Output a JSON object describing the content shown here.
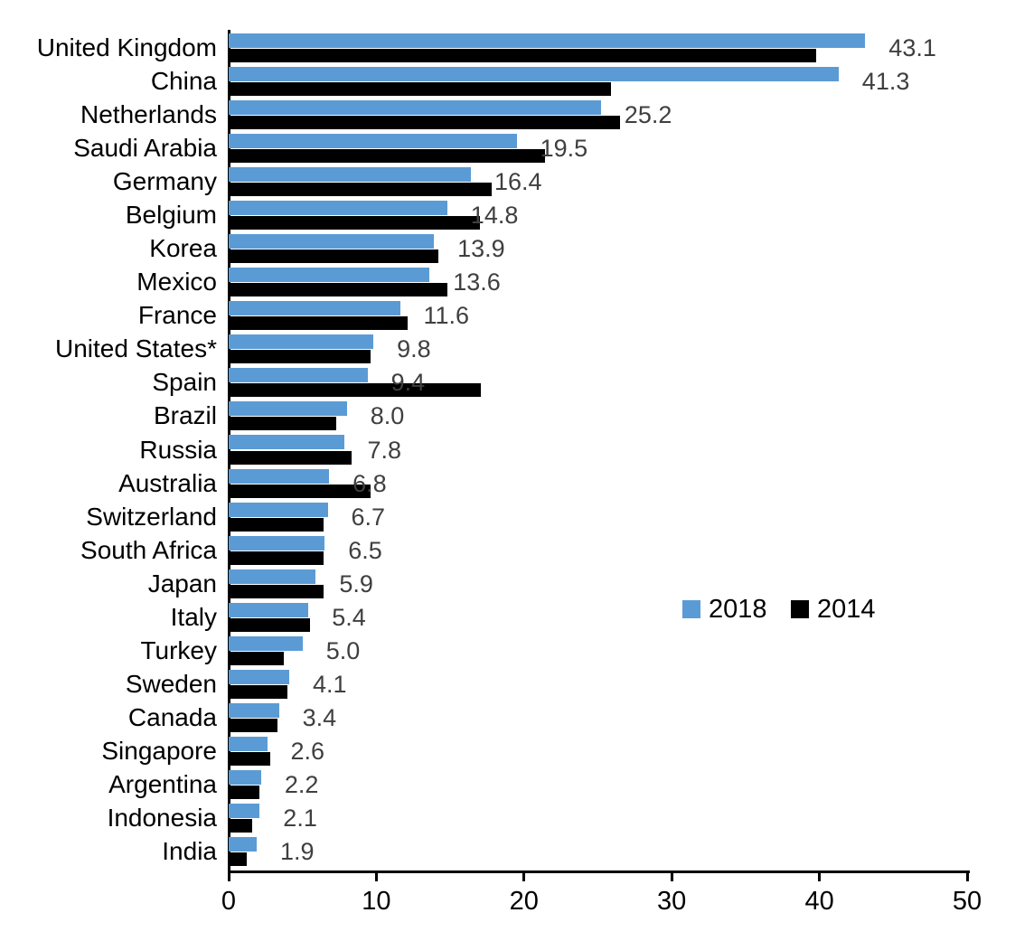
{
  "chart_data": {
    "type": "bar",
    "orientation": "horizontal",
    "title": "",
    "xlabel": "",
    "ylabel": "",
    "xlim": [
      0,
      50
    ],
    "x_ticks": [
      0,
      10,
      20,
      30,
      40,
      50
    ],
    "grid": false,
    "legend_position": "middle-right",
    "categories": [
      "United Kingdom",
      "China",
      "Netherlands",
      "Saudi Arabia",
      "Germany",
      "Belgium",
      "Korea",
      "Mexico",
      "France",
      "United States*",
      "Spain",
      "Brazil",
      "Russia",
      "Australia",
      "Switzerland",
      "South Africa",
      "Japan",
      "Italy",
      "Turkey",
      "Sweden",
      "Canada",
      "Singapore",
      "Argentina",
      "Indonesia",
      "India"
    ],
    "series": [
      {
        "name": "2018",
        "color": "#5B9BD5",
        "values": [
          43.1,
          41.3,
          25.2,
          19.5,
          16.4,
          14.8,
          13.9,
          13.6,
          11.6,
          9.8,
          9.4,
          8.0,
          7.8,
          6.8,
          6.7,
          6.5,
          5.9,
          5.4,
          5.0,
          4.1,
          3.4,
          2.6,
          2.2,
          2.1,
          1.9
        ]
      },
      {
        "name": "2014",
        "color": "#000000",
        "values": [
          39.8,
          25.9,
          26.5,
          21.4,
          17.8,
          17.0,
          14.2,
          14.8,
          12.1,
          9.6,
          17.1,
          7.3,
          8.3,
          9.6,
          6.4,
          6.4,
          6.4,
          5.5,
          3.7,
          4.0,
          3.3,
          2.8,
          2.1,
          1.6,
          1.2
        ]
      }
    ],
    "data_labels": [
      "43.1",
      "41.3",
      "25.2",
      "19.5",
      "16.4",
      "14.8",
      "13.9",
      "13.6",
      "11.6",
      "9.8",
      "9.4",
      "8.0",
      "7.8",
      "6.8",
      "6.7",
      "6.5",
      "5.9",
      "5.4",
      "5.0",
      "4.1",
      "3.4",
      "2.6",
      "2.2",
      "2.1",
      "1.9"
    ],
    "data_label_series": "2018",
    "data_label_color": "#3f3f3f"
  },
  "legend": {
    "items": [
      {
        "label": "2018",
        "color": "#5B9BD5"
      },
      {
        "label": "2014",
        "color": "#000000"
      }
    ]
  }
}
